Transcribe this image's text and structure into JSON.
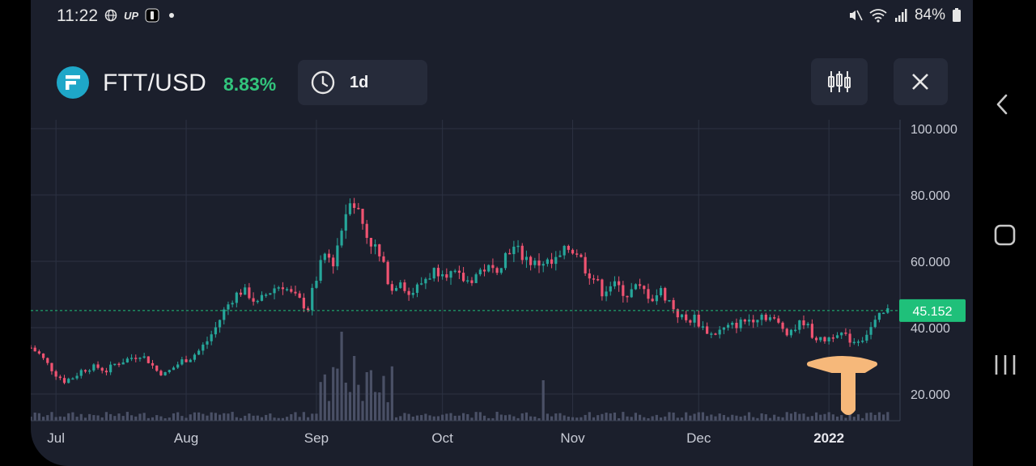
{
  "status_bar": {
    "time": "11:22",
    "battery": "84%",
    "app_badge": "UP"
  },
  "header": {
    "pair": "FTT/USD",
    "change_pct": "8.83%",
    "timeframe": "1d",
    "change_color": "#32c47c"
  },
  "icons": {
    "coin": "ftx-logo-icon",
    "timeframe": "clock-icon",
    "indicators": "candlestick-settings-icon",
    "close": "close-icon",
    "annotation": "up-arrow-icon"
  },
  "chart_data": {
    "type": "candlestick",
    "y_ticks": [
      "100.000",
      "80.000",
      "60.000",
      "40.000",
      "20.000"
    ],
    "y_tick_values": [
      100,
      80,
      60,
      40,
      20
    ],
    "ylim": [
      12,
      102
    ],
    "x_ticks": [
      "Jul",
      "Aug",
      "Sep",
      "Oct",
      "Nov",
      "Dec",
      "2022"
    ],
    "current_price": "45.152",
    "current_price_value": 45.152,
    "grid": true,
    "up_color": "#26a69a",
    "down_color": "#ef5371",
    "price_color": "#1fc07a",
    "x_range": [
      "2021-06-25",
      "2022-01-16"
    ],
    "closes": [
      [
        "2021-06-25",
        34
      ],
      [
        "2021-06-27",
        32
      ],
      [
        "2021-06-29",
        29
      ],
      [
        "2021-07-01",
        26
      ],
      [
        "2021-07-03",
        24
      ],
      [
        "2021-07-05",
        25
      ],
      [
        "2021-07-07",
        27
      ],
      [
        "2021-07-09",
        28
      ],
      [
        "2021-07-11",
        28
      ],
      [
        "2021-07-13",
        27
      ],
      [
        "2021-07-15",
        29
      ],
      [
        "2021-07-17",
        30
      ],
      [
        "2021-07-19",
        31
      ],
      [
        "2021-07-21",
        32
      ],
      [
        "2021-07-23",
        30
      ],
      [
        "2021-07-25",
        27
      ],
      [
        "2021-07-27",
        26
      ],
      [
        "2021-07-29",
        28
      ],
      [
        "2021-07-31",
        30
      ],
      [
        "2021-08-02",
        31
      ],
      [
        "2021-08-04",
        33
      ],
      [
        "2021-08-06",
        36
      ],
      [
        "2021-08-08",
        40
      ],
      [
        "2021-08-10",
        45
      ],
      [
        "2021-08-12",
        49
      ],
      [
        "2021-08-14",
        51
      ],
      [
        "2021-08-16",
        50
      ],
      [
        "2021-08-18",
        47
      ],
      [
        "2021-08-20",
        50
      ],
      [
        "2021-08-22",
        52
      ],
      [
        "2021-08-24",
        53
      ],
      [
        "2021-08-26",
        50
      ],
      [
        "2021-08-28",
        48
      ],
      [
        "2021-08-30",
        46
      ],
      [
        "2021-09-01",
        55
      ],
      [
        "2021-09-03",
        62
      ],
      [
        "2021-09-05",
        60
      ],
      [
        "2021-09-07",
        70
      ],
      [
        "2021-09-09",
        80
      ],
      [
        "2021-09-11",
        75
      ],
      [
        "2021-09-13",
        68
      ],
      [
        "2021-09-15",
        64
      ],
      [
        "2021-09-17",
        58
      ],
      [
        "2021-09-19",
        52
      ],
      [
        "2021-09-21",
        55
      ],
      [
        "2021-09-23",
        50
      ],
      [
        "2021-09-25",
        52
      ],
      [
        "2021-09-27",
        55
      ],
      [
        "2021-09-29",
        57
      ],
      [
        "2021-10-01",
        58
      ],
      [
        "2021-10-03",
        56
      ],
      [
        "2021-10-05",
        55
      ],
      [
        "2021-10-07",
        54
      ],
      [
        "2021-10-09",
        56
      ],
      [
        "2021-10-11",
        58
      ],
      [
        "2021-10-13",
        57
      ],
      [
        "2021-10-15",
        60
      ],
      [
        "2021-10-17",
        64
      ],
      [
        "2021-10-19",
        63
      ],
      [
        "2021-10-21",
        61
      ],
      [
        "2021-10-23",
        59
      ],
      [
        "2021-10-25",
        60
      ],
      [
        "2021-10-27",
        59
      ],
      [
        "2021-10-29",
        61
      ],
      [
        "2021-10-31",
        64
      ],
      [
        "2021-11-02",
        63
      ],
      [
        "2021-11-04",
        58
      ],
      [
        "2021-11-06",
        55
      ],
      [
        "2021-11-08",
        51
      ],
      [
        "2021-11-10",
        53
      ],
      [
        "2021-11-12",
        52
      ],
      [
        "2021-11-14",
        50
      ],
      [
        "2021-11-16",
        52
      ],
      [
        "2021-11-18",
        51
      ],
      [
        "2021-11-20",
        49
      ],
      [
        "2021-11-22",
        51
      ],
      [
        "2021-11-24",
        48
      ],
      [
        "2021-11-26",
        44
      ],
      [
        "2021-11-28",
        42
      ],
      [
        "2021-11-30",
        43
      ],
      [
        "2021-12-02",
        40
      ],
      [
        "2021-12-04",
        38
      ],
      [
        "2021-12-06",
        39
      ],
      [
        "2021-12-08",
        40
      ],
      [
        "2021-12-10",
        41
      ],
      [
        "2021-12-12",
        42
      ],
      [
        "2021-12-14",
        43
      ],
      [
        "2021-12-16",
        44
      ],
      [
        "2021-12-18",
        43
      ],
      [
        "2021-12-20",
        41
      ],
      [
        "2021-12-22",
        39
      ],
      [
        "2021-12-24",
        40
      ],
      [
        "2021-12-26",
        42
      ],
      [
        "2021-12-28",
        38
      ],
      [
        "2021-12-30",
        36
      ],
      [
        "2022-01-01",
        37
      ],
      [
        "2022-01-03",
        39
      ],
      [
        "2022-01-05",
        37
      ],
      [
        "2022-01-07",
        36
      ],
      [
        "2022-01-09",
        37
      ],
      [
        "2022-01-11",
        40
      ],
      [
        "2022-01-13",
        43
      ],
      [
        "2022-01-15",
        45
      ]
    ],
    "volume_spikes": [
      [
        "2021-09-07",
        110
      ],
      [
        "2021-09-10",
        80
      ],
      [
        "2021-10-25",
        50
      ],
      [
        "2021-09-13",
        60
      ]
    ]
  }
}
